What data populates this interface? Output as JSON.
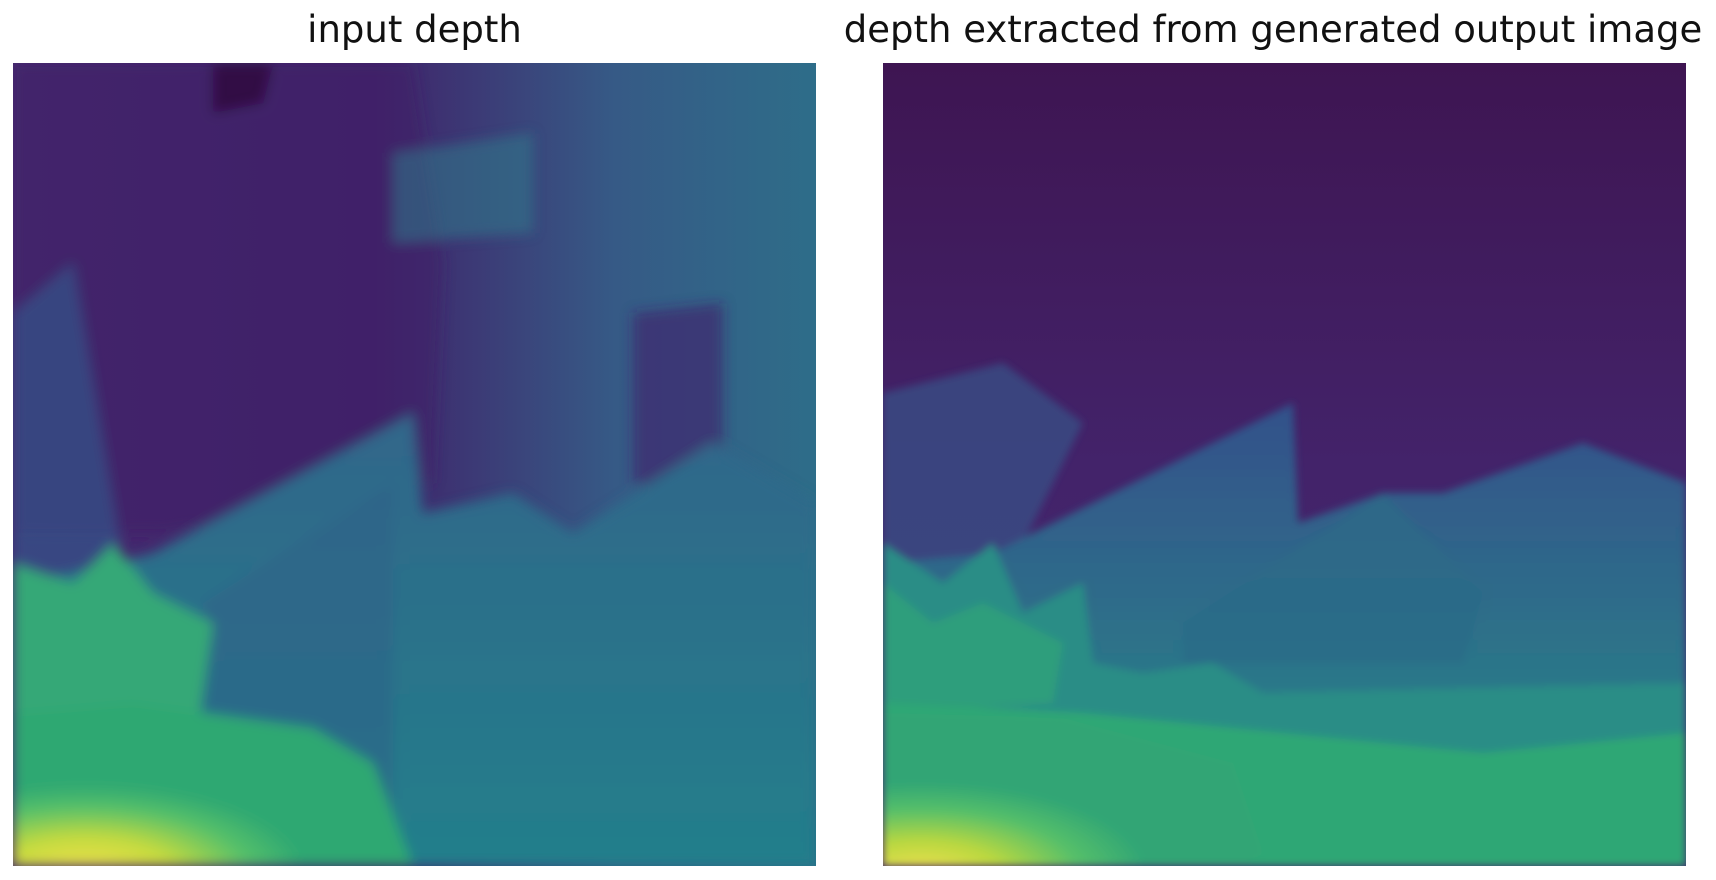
{
  "figure": {
    "colormap": "viridis",
    "panels": [
      {
        "title": "input depth"
      },
      {
        "title": "depth extracted from generated output image"
      }
    ]
  },
  "colors": {
    "background": "#ffffff",
    "title_text": "#111111",
    "viridis_dark": "#3b1a55",
    "viridis_mid": "#2c6d84",
    "viridis_green": "#2fa872",
    "viridis_yellow": "#f1e051"
  }
}
